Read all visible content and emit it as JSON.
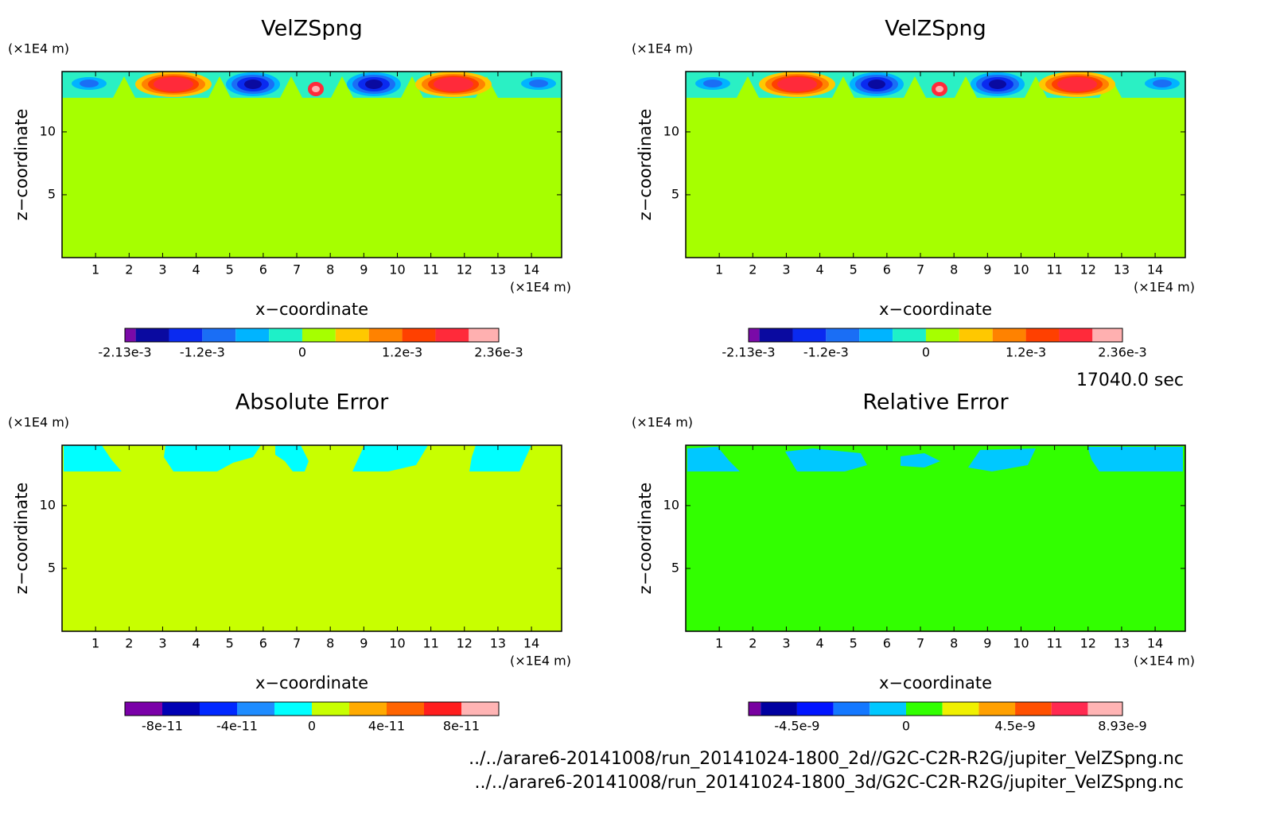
{
  "time_label": "17040.0 sec",
  "files": [
    "../../arare6-20141008/run_20141024-1800_2d//G2C-C2R-R2G/jupiter_VelZSpng.nc",
    "../../arare6-20141008/run_20141024-1800_3d/G2C-C2R-R2G/jupiter_VelZSpng.nc"
  ],
  "chart_data": [
    {
      "type": "contour",
      "title": "VelZSpng",
      "xlabel": "x−coordinate",
      "ylabel": "z−coordinate",
      "unit": "(×1E4 m)",
      "xlim": [
        0,
        14.9
      ],
      "ylim": [
        0,
        14.8
      ],
      "xticks": [
        1,
        2,
        3,
        4,
        5,
        6,
        7,
        8,
        9,
        10,
        11,
        12,
        13,
        14
      ],
      "yticks": [
        5,
        10
      ],
      "background_color": "#a6ff00",
      "band_color": "#2af0c4",
      "colorbar": {
        "lim": [
          -0.00213,
          0.00236
        ],
        "levels": [
          -0.00213,
          -0.002,
          -0.0016,
          -0.0012,
          -0.0008,
          -0.0004,
          0,
          0.0004,
          0.0008,
          0.0012,
          0.0016,
          0.002,
          0.00236
        ],
        "colors": [
          "#7a0aa8",
          "#0a0aa0",
          "#0a2af0",
          "#1a6ef5",
          "#00b4ff",
          "#1ef0c8",
          "#a6ff00",
          "#ffc800",
          "#ff8200",
          "#ff4000",
          "#ff2a3a",
          "#ffb0b0"
        ],
        "ticks": [
          {
            "value": -0.00213,
            "label": "-2.13e-3"
          },
          {
            "value": -0.0012,
            "label": "-1.2e-3"
          },
          0,
          {
            "value": 0.0012,
            "label": "1.2e-3"
          },
          {
            "value": 0.00236,
            "label": "2.36e-3"
          }
        ]
      }
    },
    {
      "type": "contour",
      "title": "VelZSpng",
      "xlabel": "x−coordinate",
      "ylabel": "z−coordinate",
      "unit": "(×1E4 m)",
      "xlim": [
        0,
        14.9
      ],
      "ylim": [
        0,
        14.8
      ],
      "xticks": [
        1,
        2,
        3,
        4,
        5,
        6,
        7,
        8,
        9,
        10,
        11,
        12,
        13,
        14
      ],
      "yticks": [
        5,
        10
      ],
      "background_color": "#a6ff00",
      "band_color": "#2af0c4",
      "colorbar": {
        "lim": [
          -0.00213,
          0.00236
        ],
        "levels": [
          -0.00213,
          -0.002,
          -0.0016,
          -0.0012,
          -0.0008,
          -0.0004,
          0,
          0.0004,
          0.0008,
          0.0012,
          0.0016,
          0.002,
          0.00236
        ],
        "colors": [
          "#7a0aa8",
          "#0a0aa0",
          "#0a2af0",
          "#1a6ef5",
          "#00b4ff",
          "#1ef0c8",
          "#a6ff00",
          "#ffc800",
          "#ff8200",
          "#ff4000",
          "#ff2a3a",
          "#ffb0b0"
        ],
        "ticks": [
          {
            "value": -0.00213,
            "label": "-2.13e-3"
          },
          {
            "value": -0.0012,
            "label": "-1.2e-3"
          },
          0,
          {
            "value": 0.0012,
            "label": "1.2e-3"
          },
          {
            "value": 0.00236,
            "label": "2.36e-3"
          }
        ]
      }
    },
    {
      "type": "contour",
      "title": "Absolute Error",
      "xlabel": "x−coordinate",
      "ylabel": "z−coordinate",
      "unit": "(×1E4 m)",
      "xlim": [
        0,
        14.9
      ],
      "ylim": [
        0,
        14.8
      ],
      "xticks": [
        1,
        2,
        3,
        4,
        5,
        6,
        7,
        8,
        9,
        10,
        11,
        12,
        13,
        14
      ],
      "yticks": [
        5,
        10
      ],
      "background_color": "#c8ff00",
      "band_color": "#00ffff",
      "colorbar": {
        "lim": [
          -1e-10,
          1e-10
        ],
        "levels": [
          -1e-10,
          -8e-11,
          -6e-11,
          -4e-11,
          -2e-11,
          0,
          2e-11,
          4e-11,
          6e-11,
          8e-11,
          1e-10
        ],
        "colors": [
          "#7a00a8",
          "#0000b4",
          "#0028ff",
          "#1e8cff",
          "#00ffff",
          "#c8ff00",
          "#ffaa00",
          "#ff6400",
          "#ff1e1e",
          "#ffb4b4"
        ],
        "ticks": [
          -8e-11,
          -4e-11,
          0,
          4e-11,
          8e-11
        ]
      }
    },
    {
      "type": "contour",
      "title": "Relative Error",
      "xlabel": "x−coordinate",
      "ylabel": "z−coordinate",
      "unit": "(×1E4 m)",
      "xlim": [
        0,
        14.9
      ],
      "ylim": [
        0,
        14.8
      ],
      "xticks": [
        1,
        2,
        3,
        4,
        5,
        6,
        7,
        8,
        9,
        10,
        11,
        12,
        13,
        14
      ],
      "yticks": [
        5,
        10
      ],
      "background_color": "#32ff00",
      "band_color": "#00c8ff",
      "colorbar": {
        "lim": [
          -6.5e-09,
          8.93e-09
        ],
        "levels": [
          -6.5e-09,
          -6e-09,
          -4.5e-09,
          -3e-09,
          -1.5e-09,
          0,
          1.5e-09,
          3e-09,
          4.5e-09,
          6e-09,
          7.5e-09,
          8.93e-09
        ],
        "colors": [
          "#7800a0",
          "#0000a0",
          "#0014ff",
          "#1478ff",
          "#00c8ff",
          "#32ff00",
          "#f0f000",
          "#ffa000",
          "#ff5000",
          "#ff2a50",
          "#ffb4b4"
        ],
        "ticks": [
          -4.5e-09,
          0,
          4.5e-09,
          8.93e-09
        ]
      }
    }
  ]
}
